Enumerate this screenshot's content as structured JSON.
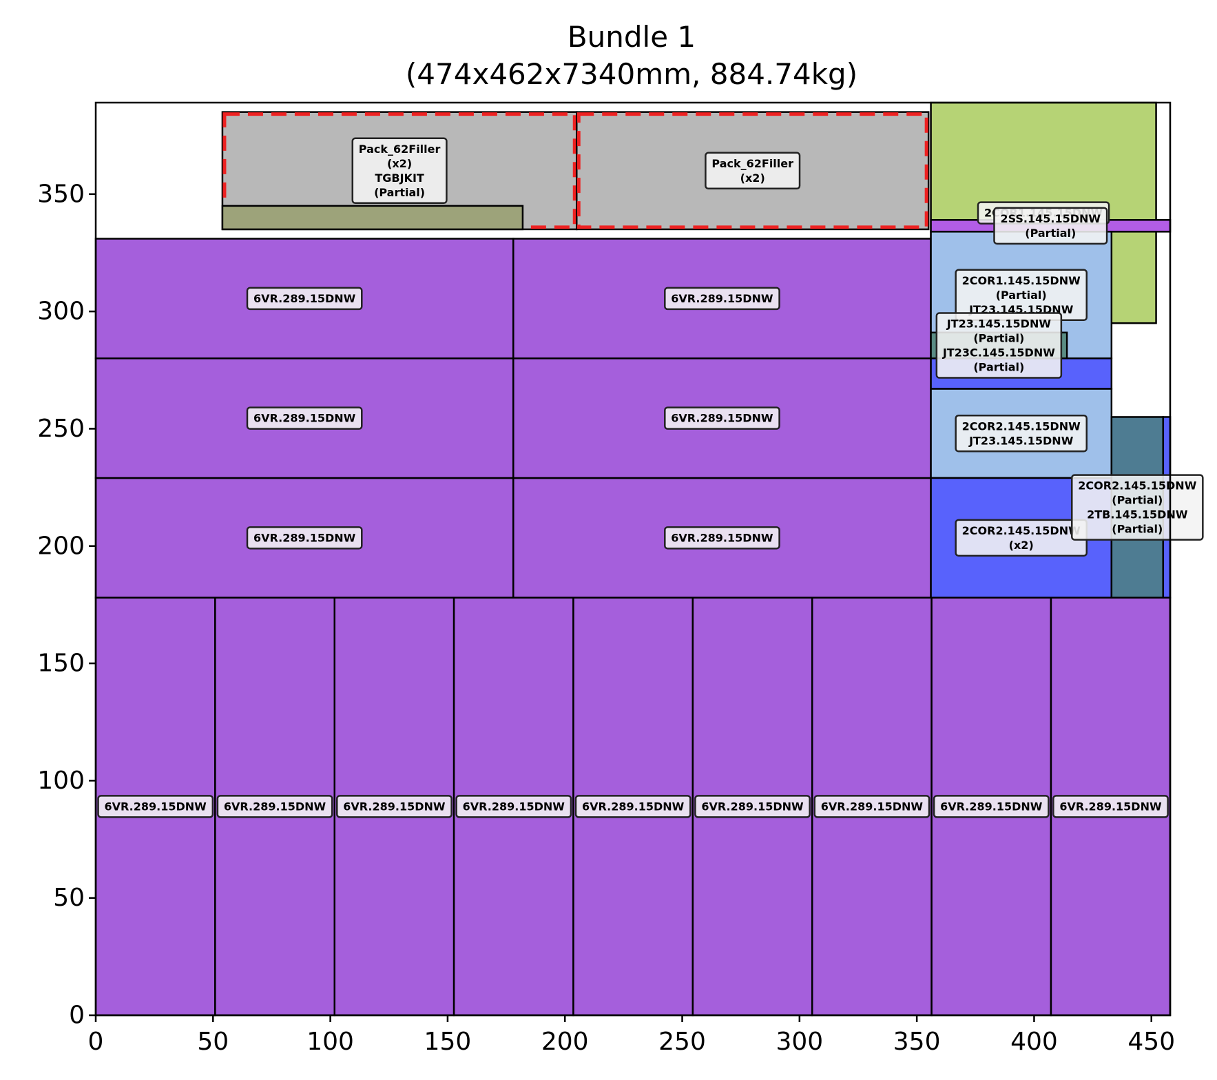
{
  "chart_data": {
    "type": "packing-layout",
    "title_lines": [
      "Bundle 1",
      "(474x462x7340mm, 884.74kg)"
    ],
    "xlim": [
      0,
      458
    ],
    "ylim": [
      0,
      389
    ],
    "x_ticks": [
      0,
      50,
      100,
      150,
      200,
      250,
      300,
      350,
      400,
      450
    ],
    "y_ticks": [
      0,
      50,
      100,
      150,
      200,
      250,
      300,
      350
    ],
    "grid": false,
    "boxes": [
      {
        "x0": 0,
        "y0": 0,
        "x1": 50.9,
        "y1": 178,
        "color": "#a55fdc",
        "label": [
          "6VR.289.15DNW"
        ]
      },
      {
        "x0": 50.9,
        "y0": 0,
        "x1": 101.8,
        "y1": 178,
        "color": "#a55fdc",
        "label": [
          "6VR.289.15DNW"
        ]
      },
      {
        "x0": 101.8,
        "y0": 0,
        "x1": 152.7,
        "y1": 178,
        "color": "#a55fdc",
        "label": [
          "6VR.289.15DNW"
        ]
      },
      {
        "x0": 152.7,
        "y0": 0,
        "x1": 203.6,
        "y1": 178,
        "color": "#a55fdc",
        "label": [
          "6VR.289.15DNW"
        ]
      },
      {
        "x0": 203.6,
        "y0": 0,
        "x1": 254.5,
        "y1": 178,
        "color": "#a55fdc",
        "label": [
          "6VR.289.15DNW"
        ]
      },
      {
        "x0": 254.5,
        "y0": 0,
        "x1": 305.4,
        "y1": 178,
        "color": "#a55fdc",
        "label": [
          "6VR.289.15DNW"
        ]
      },
      {
        "x0": 305.4,
        "y0": 0,
        "x1": 356.3,
        "y1": 178,
        "color": "#a55fdc",
        "label": [
          "6VR.289.15DNW"
        ]
      },
      {
        "x0": 356.3,
        "y0": 0,
        "x1": 407.2,
        "y1": 178,
        "color": "#a55fdc",
        "label": [
          "6VR.289.15DNW"
        ]
      },
      {
        "x0": 407.2,
        "y0": 0,
        "x1": 458,
        "y1": 178,
        "color": "#a55fdc",
        "label": [
          "6VR.289.15DNW"
        ]
      },
      {
        "x0": 0,
        "y0": 178,
        "x1": 178,
        "y1": 229,
        "color": "#a55fdc",
        "label": [
          "6VR.289.15DNW"
        ]
      },
      {
        "x0": 178,
        "y0": 178,
        "x1": 356,
        "y1": 229,
        "color": "#a55fdc",
        "label": [
          "6VR.289.15DNW"
        ]
      },
      {
        "x0": 0,
        "y0": 229,
        "x1": 178,
        "y1": 280,
        "color": "#a55fdc",
        "label": [
          "6VR.289.15DNW"
        ]
      },
      {
        "x0": 178,
        "y0": 229,
        "x1": 356,
        "y1": 280,
        "color": "#a55fdc",
        "label": [
          "6VR.289.15DNW"
        ]
      },
      {
        "x0": 0,
        "y0": 280,
        "x1": 178,
        "y1": 331,
        "color": "#a55fdc",
        "label": [
          "6VR.289.15DNW"
        ]
      },
      {
        "x0": 178,
        "y0": 280,
        "x1": 356,
        "y1": 331,
        "color": "#a55fdc",
        "label": [
          "6VR.289.15DNW"
        ]
      },
      {
        "x0": 54,
        "y0": 335,
        "x1": 205,
        "y1": 385,
        "color": "#b8b8b8",
        "dashed": true,
        "label": [
          "Pack_62Filler",
          "(x2)",
          "TGBJKIT",
          "(Partial)"
        ]
      },
      {
        "x0": 205,
        "y0": 335,
        "x1": 355,
        "y1": 385,
        "color": "#b8b8b8",
        "dashed": true,
        "label": [
          "Pack_62Filler",
          "(x2)"
        ]
      },
      {
        "x0": 54,
        "y0": 335,
        "x1": 182,
        "y1": 345,
        "color": "#9da37a"
      },
      {
        "x0": 356,
        "y0": 295,
        "x1": 452,
        "y1": 389,
        "color": "#b6d375",
        "label": [
          "2COR1.145.15DNW"
        ]
      },
      {
        "x0": 356,
        "y0": 334,
        "x1": 458,
        "y1": 339,
        "color": "#b25de6",
        "label": [
          "2SS.145.15DNW",
          "(Partial)"
        ]
      },
      {
        "x0": 356,
        "y0": 280,
        "x1": 433,
        "y1": 334,
        "color": "#9fc0ea",
        "label": [
          "2COR1.145.15DNW",
          "(Partial)",
          "JT23.145.15DNW"
        ]
      },
      {
        "x0": 356,
        "y0": 267,
        "x1": 433,
        "y1": 280,
        "color": "#5862fc"
      },
      {
        "x0": 356,
        "y0": 280,
        "x1": 414,
        "y1": 291,
        "color": "#5a8c84",
        "label": [
          "JT23.145.15DNW",
          "(Partial)",
          "JT23C.145.15DNW",
          "(Partial)"
        ]
      },
      {
        "x0": 356,
        "y0": 229,
        "x1": 433,
        "y1": 267,
        "color": "#9fc0ea",
        "label": [
          "2COR2.145.15DNW",
          "JT23.145.15DNW"
        ]
      },
      {
        "x0": 356,
        "y0": 178,
        "x1": 433,
        "y1": 229,
        "color": "#5862fc",
        "label": [
          "2COR2.145.15DNW",
          "(x2)"
        ]
      },
      {
        "x0": 433,
        "y0": 178,
        "x1": 455,
        "y1": 255,
        "color": "#4e7c92",
        "label": [
          "2COR2.145.15DNW",
          "(Partial)",
          "2TB.145.15DNW",
          "(Partial)"
        ]
      },
      {
        "x0": 455,
        "y0": 178,
        "x1": 458,
        "y1": 255,
        "color": "#5862fc"
      }
    ]
  }
}
